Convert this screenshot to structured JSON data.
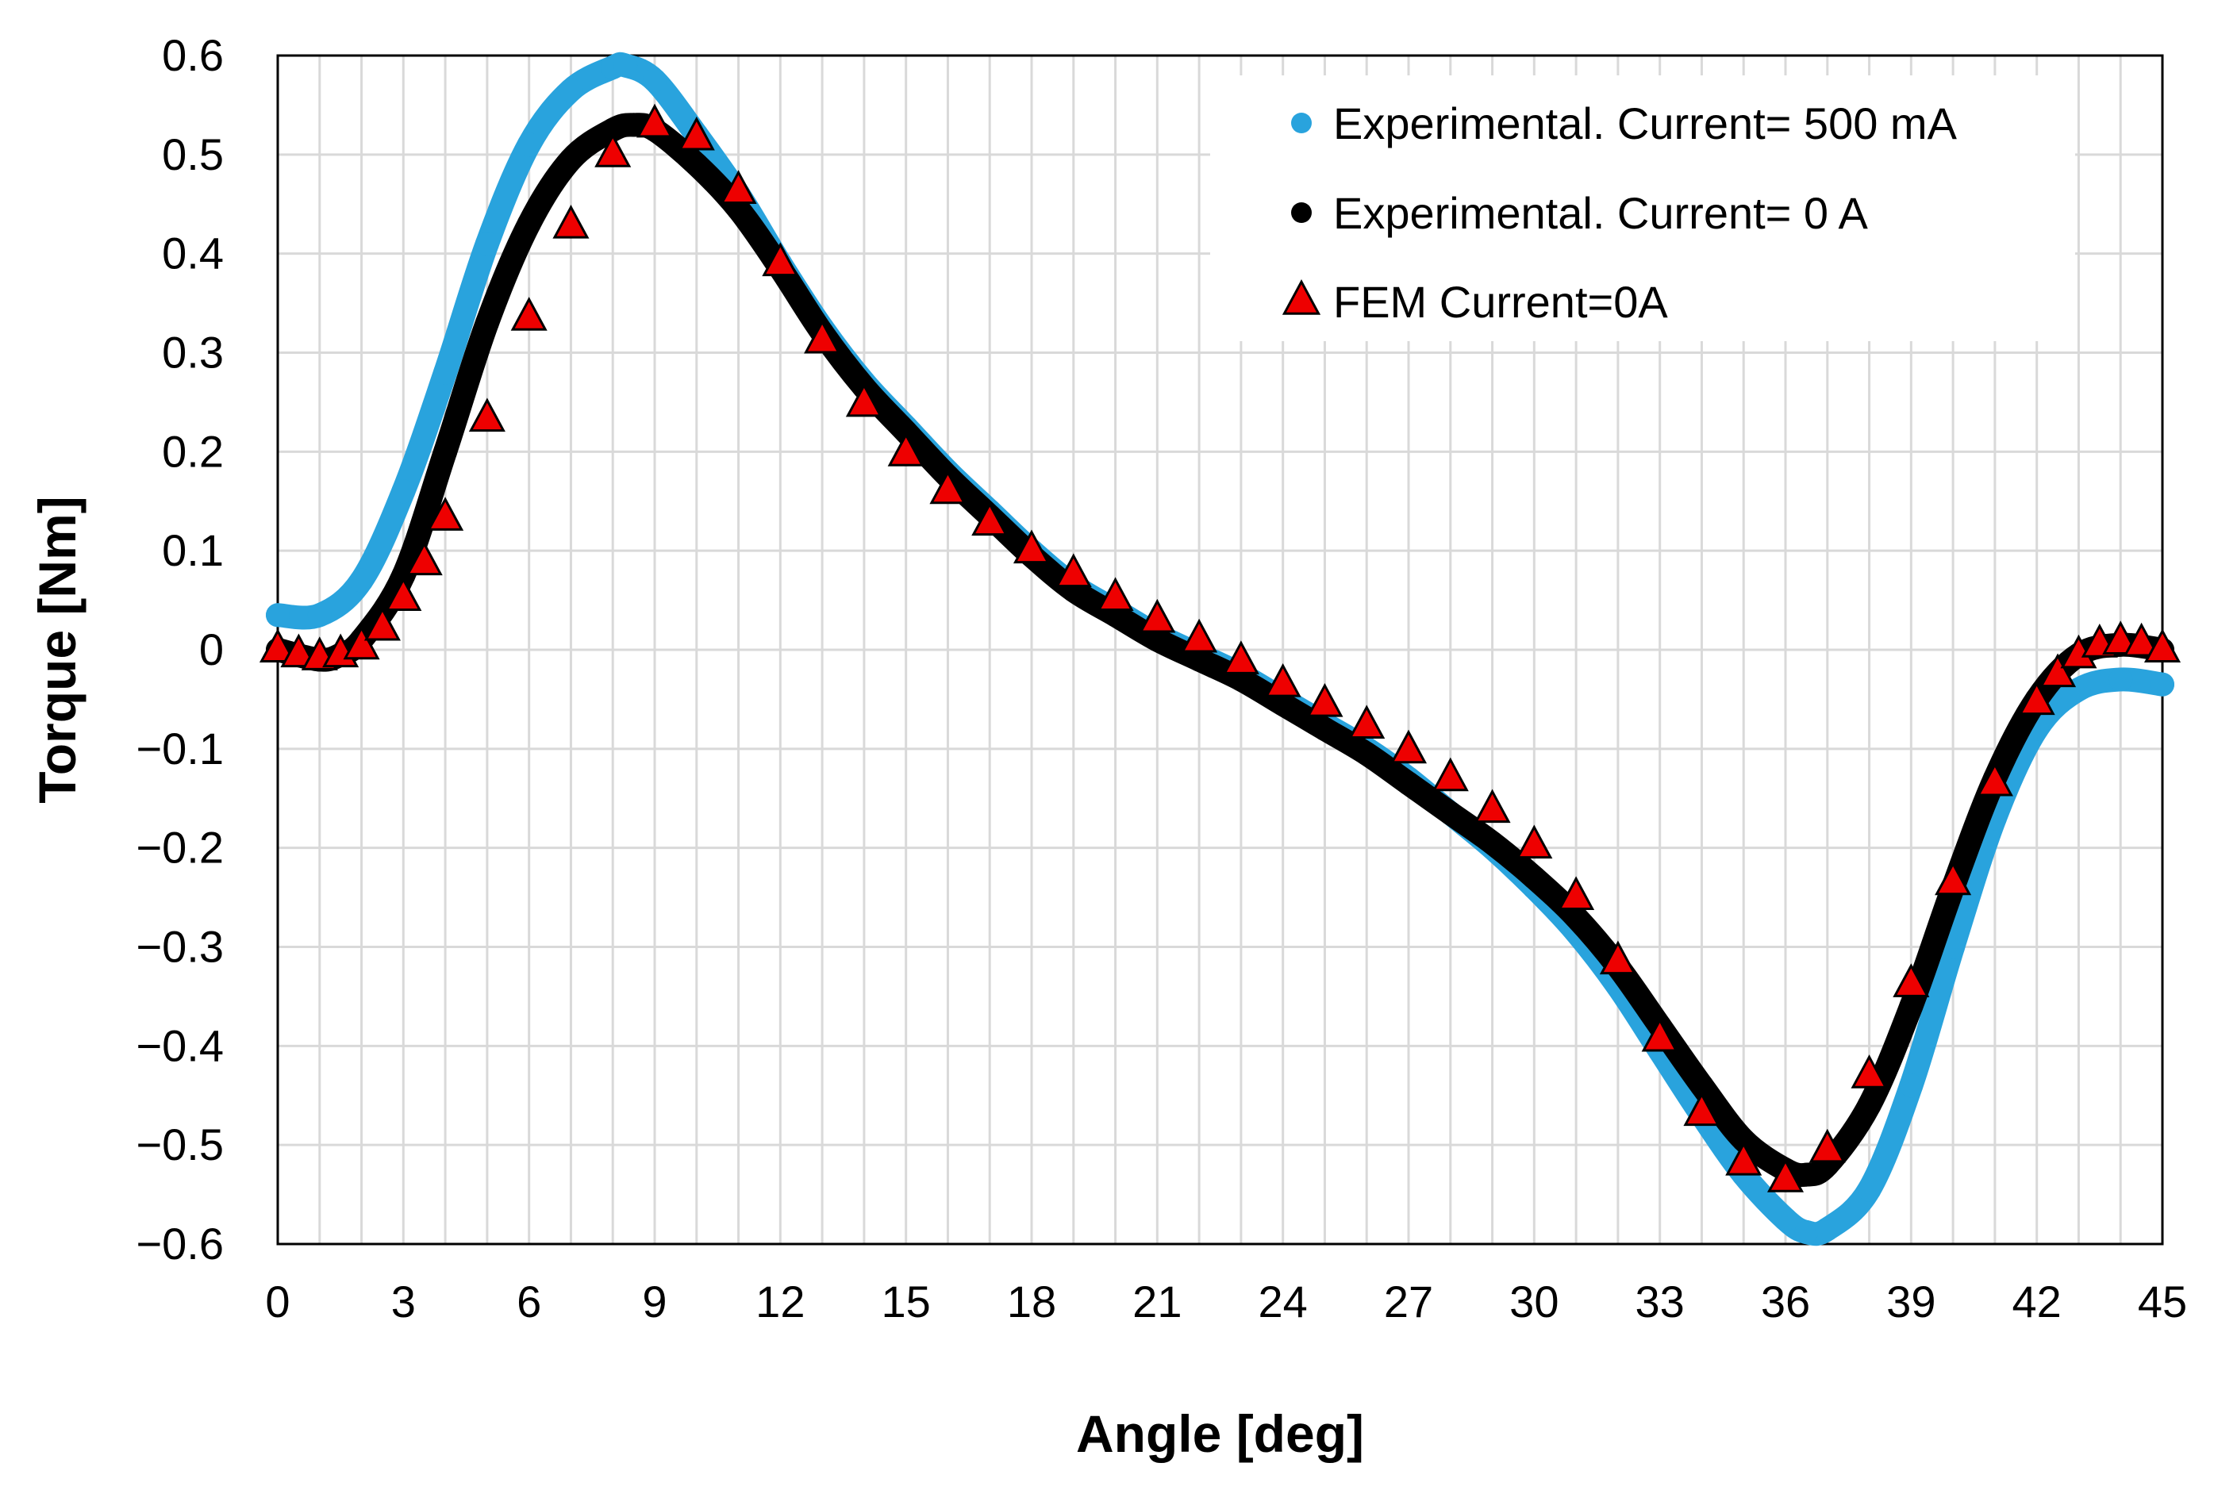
{
  "chart_data": {
    "type": "scatter",
    "xlabel": "Angle [deg]",
    "ylabel": "Torque [Nm]",
    "xlim": [
      0,
      45
    ],
    "ylim": [
      -0.6,
      0.6
    ],
    "x_ticks": [
      0,
      3,
      6,
      9,
      12,
      15,
      18,
      21,
      24,
      27,
      30,
      33,
      36,
      39,
      42,
      45
    ],
    "y_ticks": [
      0.6,
      0.5,
      0.4,
      0.3,
      0.2,
      0.1,
      0,
      -0.1,
      -0.2,
      -0.3,
      -0.4,
      -0.5,
      -0.6
    ],
    "x_tick_labels": [
      "0",
      "3",
      "6",
      "9",
      "12",
      "15",
      "18",
      "21",
      "24",
      "27",
      "30",
      "33",
      "36",
      "39",
      "42",
      "45"
    ],
    "y_tick_labels": [
      "0.6",
      "0.5",
      "0.4",
      "0.3",
      "0.2",
      "0.1",
      "0",
      "−0.1",
      "−0.2",
      "−0.3",
      "−0.4",
      "−0.5",
      "−0.6"
    ],
    "grid": true,
    "legend_position": "top-right",
    "series": [
      {
        "name": "Experimental. Current= 500 mA",
        "marker": "dense-circle",
        "color": "#29a3dd",
        "x": [
          0,
          1,
          2,
          3,
          4,
          5,
          6,
          7,
          8,
          8.3,
          9,
          10,
          11,
          12,
          13,
          14,
          15,
          16,
          17,
          18,
          19,
          20,
          21,
          22,
          23,
          24,
          25,
          26,
          27,
          28,
          29,
          30,
          31,
          32,
          33,
          34,
          35,
          36,
          36.5,
          37,
          38,
          39,
          40,
          41,
          42,
          43,
          44,
          45
        ],
        "y": [
          0.035,
          0.035,
          0.07,
          0.16,
          0.28,
          0.41,
          0.51,
          0.565,
          0.588,
          0.59,
          0.575,
          0.52,
          0.46,
          0.39,
          0.325,
          0.27,
          0.225,
          0.18,
          0.14,
          0.1,
          0.065,
          0.04,
          0.015,
          -0.005,
          -0.025,
          -0.05,
          -0.075,
          -0.1,
          -0.13,
          -0.165,
          -0.2,
          -0.24,
          -0.285,
          -0.34,
          -0.405,
          -0.47,
          -0.53,
          -0.575,
          -0.588,
          -0.585,
          -0.545,
          -0.44,
          -0.3,
          -0.17,
          -0.08,
          -0.04,
          -0.03,
          -0.035
        ]
      },
      {
        "name": "Experimental. Current= 0 A",
        "marker": "dense-circle",
        "color": "#000000",
        "x": [
          0,
          1,
          1.5,
          2,
          3,
          4,
          5,
          6,
          7,
          8,
          8.5,
          9,
          10,
          11,
          12,
          13,
          14,
          15,
          16,
          17,
          18,
          19,
          20,
          21,
          22,
          23,
          24,
          25,
          26,
          27,
          28,
          29,
          30,
          31,
          32,
          33,
          34,
          35,
          36,
          36.5,
          37,
          38,
          39,
          40,
          41,
          42,
          43,
          44,
          45
        ],
        "y": [
          0,
          -0.01,
          -0.005,
          0.01,
          0.075,
          0.2,
          0.33,
          0.43,
          0.495,
          0.525,
          0.53,
          0.525,
          0.49,
          0.445,
          0.385,
          0.32,
          0.265,
          0.22,
          0.175,
          0.135,
          0.095,
          0.06,
          0.035,
          0.01,
          -0.01,
          -0.03,
          -0.055,
          -0.08,
          -0.105,
          -0.135,
          -0.165,
          -0.195,
          -0.23,
          -0.27,
          -0.32,
          -0.38,
          -0.44,
          -0.495,
          -0.525,
          -0.53,
          -0.52,
          -0.46,
          -0.36,
          -0.24,
          -0.13,
          -0.05,
          -0.005,
          0.005,
          0
        ]
      },
      {
        "name": "FEM Current=0A",
        "marker": "triangle",
        "color": "#ee0000",
        "x": [
          0,
          0.5,
          1,
          1.5,
          2,
          2.5,
          3,
          3.5,
          4,
          5,
          6,
          7,
          8,
          9,
          10,
          11,
          12,
          13,
          14,
          15,
          16,
          17,
          18,
          19,
          20,
          21,
          22,
          23,
          24,
          25,
          26,
          27,
          28,
          29,
          30,
          31,
          32,
          33,
          34,
          35,
          36,
          37,
          38,
          39,
          40,
          41,
          42,
          42.5,
          43,
          43.5,
          44,
          44.5,
          45
        ],
        "y": [
          0,
          -0.005,
          -0.008,
          -0.005,
          0.003,
          0.022,
          0.052,
          0.088,
          0.133,
          0.233,
          0.335,
          0.428,
          0.5,
          0.53,
          0.517,
          0.463,
          0.39,
          0.312,
          0.248,
          0.198,
          0.16,
          0.128,
          0.1,
          0.076,
          0.052,
          0.03,
          0.01,
          -0.012,
          -0.035,
          -0.055,
          -0.077,
          -0.102,
          -0.13,
          -0.162,
          -0.198,
          -0.25,
          -0.315,
          -0.393,
          -0.468,
          -0.518,
          -0.535,
          -0.505,
          -0.43,
          -0.338,
          -0.235,
          -0.135,
          -0.053,
          -0.025,
          -0.006,
          0.005,
          0.008,
          0.006,
          0
        ]
      }
    ]
  },
  "colors": {
    "grid": "#d9d9d9",
    "frame": "#000000",
    "triangle_stroke": "#000000"
  }
}
